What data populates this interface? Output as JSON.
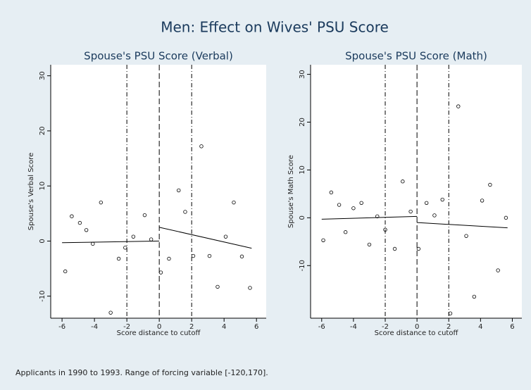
{
  "title": "Men: Effect on Wives' PSU Score",
  "note": "Applicants in 1990 to 1993. Range of forcing variable [-120,170].",
  "chart_data": [
    {
      "type": "scatter",
      "title": "Spouse's PSU Score (Verbal)",
      "x_label": "Score distance to cutoff",
      "y_label": "Spouse's Verbal Score",
      "x": [
        -5.8,
        -5.4,
        -4.9,
        -4.5,
        -4.1,
        -3.6,
        -3.0,
        -2.5,
        -2.1,
        -1.6,
        -0.9,
        -0.5,
        0.1,
        0.6,
        1.2,
        1.6,
        2.1,
        2.6,
        3.1,
        3.6,
        4.1,
        4.6,
        5.1,
        5.6
      ],
      "values": [
        -5.5,
        4.5,
        3.3,
        2.0,
        -0.5,
        7.0,
        -13.0,
        -3.2,
        -1.2,
        0.8,
        4.7,
        0.3,
        -5.7,
        -3.2,
        9.2,
        5.3,
        -2.7,
        17.2,
        -2.7,
        -8.3,
        0.8,
        7.0,
        -2.8,
        -8.5
      ],
      "fit_lines": [
        {
          "x": [
            -6,
            0
          ],
          "values": [
            -0.3,
            0.0
          ]
        },
        {
          "x": [
            0,
            5.7
          ],
          "values": [
            2.5,
            -1.3
          ]
        }
      ],
      "reference_lines": [
        -2,
        0,
        2
      ],
      "xlim": [
        -6.7,
        6.6
      ],
      "xticks": [
        -6,
        -4,
        -2,
        0,
        2,
        4,
        6
      ],
      "ylim": [
        -14,
        32
      ],
      "yticks": [
        -10,
        0,
        10,
        20,
        30
      ]
    },
    {
      "type": "scatter",
      "title": "Spouse's PSU Score (Math)",
      "x_label": "Score distance to cutoff",
      "y_label": "Spouse's Math Score",
      "x": [
        -5.9,
        -5.4,
        -4.9,
        -4.5,
        -4.0,
        -3.5,
        -3.0,
        -2.5,
        -2.0,
        -1.4,
        -0.9,
        -0.4,
        0.1,
        0.6,
        1.1,
        1.6,
        2.1,
        2.6,
        3.1,
        3.6,
        4.1,
        4.6,
        5.1,
        5.6
      ],
      "values": [
        -4.7,
        5.3,
        2.7,
        -3.0,
        2.0,
        3.1,
        -5.6,
        0.3,
        -2.5,
        -6.5,
        7.6,
        1.3,
        -6.5,
        3.1,
        0.5,
        3.8,
        -20.0,
        23.3,
        -3.8,
        -16.5,
        3.6,
        6.9,
        -11.0,
        0.0
      ],
      "fit_lines": [
        {
          "x": [
            -6,
            0
          ],
          "values": [
            -0.3,
            0.3
          ]
        },
        {
          "x": [
            0,
            5.7
          ],
          "values": [
            -1.0,
            -2.1
          ]
        }
      ],
      "reference_lines": [
        -2,
        0,
        2
      ],
      "xlim": [
        -6.7,
        6.6
      ],
      "xticks": [
        -6,
        -4,
        -2,
        0,
        2,
        4,
        6
      ],
      "ylim": [
        -21,
        32
      ],
      "yticks": [
        -10,
        0,
        10,
        20,
        30
      ]
    }
  ]
}
